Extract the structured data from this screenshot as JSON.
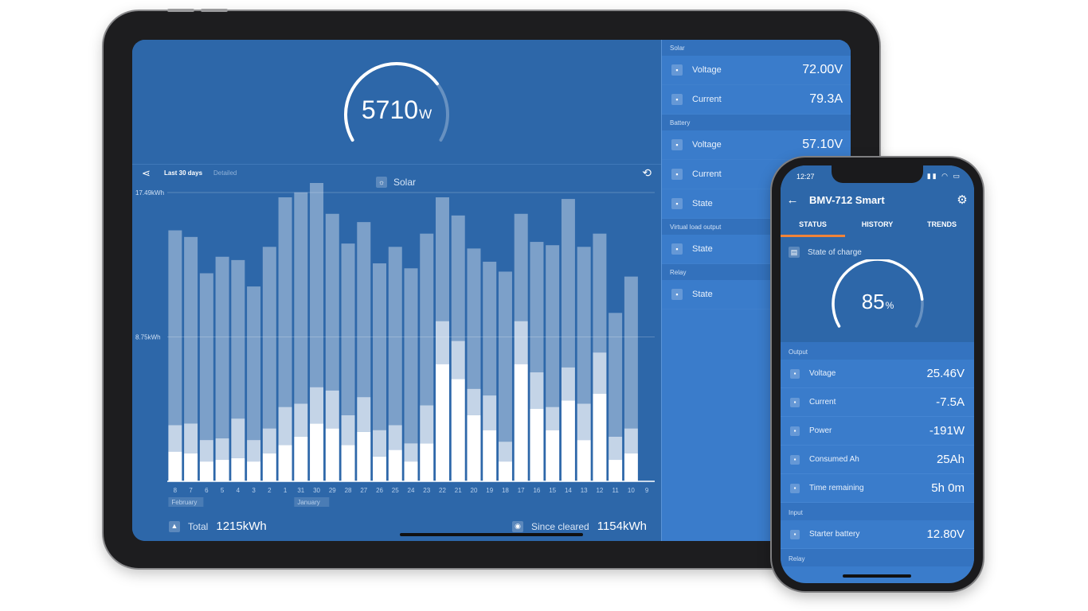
{
  "tablet": {
    "gauge": {
      "value": "5710",
      "unit": "W",
      "label": "Solar",
      "level": 0.72
    },
    "toolbar": {
      "period": "Last 30 days",
      "detail": "Detailed"
    },
    "totals": {
      "total_label": "Total",
      "total_value": "1215kWh",
      "cleared_label": "Since cleared",
      "cleared_value": "1154kWh"
    },
    "right_panel": [
      {
        "header": "Solar",
        "rows": [
          {
            "icon": "solar-voltage-icon",
            "label": "Voltage",
            "value": "72.00V"
          },
          {
            "icon": "solar-current-icon",
            "label": "Current",
            "value": "79.3A"
          }
        ]
      },
      {
        "header": "Battery",
        "rows": [
          {
            "icon": "battery-voltage-icon",
            "label": "Voltage",
            "value": "57.10V"
          },
          {
            "icon": "battery-current-icon",
            "label": "Current",
            "value": ""
          },
          {
            "icon": "battery-state-icon",
            "label": "State",
            "value": ""
          }
        ]
      },
      {
        "header": "Virtual load output",
        "rows": [
          {
            "icon": "load-state-icon",
            "label": "State",
            "value": ""
          }
        ]
      },
      {
        "header": "Relay",
        "rows": [
          {
            "icon": "relay-state-icon",
            "label": "State",
            "value": ""
          }
        ]
      }
    ]
  },
  "phone": {
    "status_time": "12:27",
    "title": "BMV-712 Smart",
    "tabs": [
      {
        "label": "STATUS",
        "active": true
      },
      {
        "label": "HISTORY",
        "active": false
      },
      {
        "label": "TRENDS",
        "active": false
      }
    ],
    "soc": {
      "label": "State of charge",
      "value": "85",
      "unit": "%",
      "level": 0.85
    },
    "sections": [
      {
        "header": "Output",
        "rows": [
          {
            "icon": "voltage-icon",
            "label": "Voltage",
            "value": "25.46V"
          },
          {
            "icon": "current-icon",
            "label": "Current",
            "value": "-7.5A"
          },
          {
            "icon": "power-icon",
            "label": "Power",
            "value": "-191W"
          },
          {
            "icon": "consumed-icon",
            "label": "Consumed Ah",
            "value": "25Ah"
          },
          {
            "icon": "time-remaining-icon",
            "label": "Time remaining",
            "value": "5h 0m"
          }
        ]
      },
      {
        "header": "Input",
        "rows": [
          {
            "icon": "starter-battery-icon",
            "label": "Starter battery",
            "value": "12.80V"
          }
        ]
      },
      {
        "header": "Relay",
        "rows": []
      }
    ]
  },
  "chart_data": {
    "type": "bar",
    "title": "",
    "xlabel": "",
    "ylabel": "",
    "ytick_labels": [
      "17.49kWh",
      "8.75kWh"
    ],
    "ylim": [
      0,
      17.49
    ],
    "grid": true,
    "month_labels": [
      {
        "text": "February",
        "at": "8"
      },
      {
        "text": "January",
        "at": "31"
      }
    ],
    "categories": [
      "8",
      "7",
      "6",
      "5",
      "4",
      "3",
      "2",
      "1",
      "31",
      "30",
      "29",
      "28",
      "27",
      "26",
      "25",
      "24",
      "23",
      "22",
      "21",
      "20",
      "19",
      "18",
      "17",
      "16",
      "15",
      "14",
      "13",
      "12",
      "11",
      "10",
      "9"
    ],
    "series": [
      {
        "name": "",
        "values": [
          1.8,
          1.7,
          1.2,
          1.3,
          1.4,
          1.2,
          1.7,
          2.2,
          2.7,
          3.5,
          3.2,
          2.2,
          3.0,
          1.5,
          1.9,
          1.2,
          2.3,
          7.1,
          6.2,
          4.0,
          3.1,
          1.2,
          7.1,
          4.4,
          3.1,
          4.9,
          2.5,
          5.3,
          1.3,
          1.7,
          0.0
        ]
      },
      {
        "name": "",
        "values": [
          1.6,
          1.8,
          1.3,
          1.3,
          2.4,
          1.3,
          1.5,
          2.3,
          2.0,
          2.2,
          2.3,
          1.8,
          2.1,
          1.6,
          1.5,
          1.1,
          2.3,
          2.6,
          2.3,
          1.6,
          2.1,
          1.2,
          2.6,
          2.2,
          1.4,
          2.0,
          2.2,
          2.5,
          1.4,
          1.5,
          0.0
        ]
      },
      {
        "name": "",
        "values": [
          11.8,
          11.3,
          10.1,
          11.0,
          9.6,
          9.3,
          11.0,
          12.7,
          12.8,
          13.0,
          10.7,
          10.4,
          10.6,
          10.1,
          10.8,
          10.6,
          10.4,
          7.5,
          7.6,
          8.5,
          8.1,
          10.3,
          6.5,
          7.9,
          9.8,
          10.2,
          9.5,
          7.2,
          7.5,
          9.2,
          0.0
        ]
      }
    ]
  }
}
